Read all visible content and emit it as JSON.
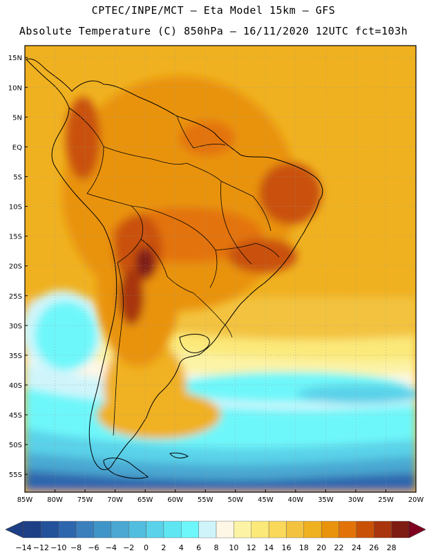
{
  "header": {
    "line1": "CPTEC/INPE/MCT –  Eta Model 15km – GFS",
    "line2": "Absolute Temperature (C) 850hPa – 16/11/2020 12UTC fct=103h"
  },
  "map": {
    "region": "South America",
    "variable": "Absolute Temperature (C) 850hPa",
    "lon_range": [
      -85,
      -20
    ],
    "lat_range": [
      -58,
      17
    ],
    "lat_labels": [
      "15N",
      "10N",
      "5N",
      "EQ",
      "5S",
      "10S",
      "15S",
      "20S",
      "25S",
      "30S",
      "35S",
      "40S",
      "45S",
      "50S",
      "55S"
    ],
    "lon_labels": [
      "85W",
      "80W",
      "75W",
      "70W",
      "65W",
      "60W",
      "55W",
      "50W",
      "45W",
      "40W",
      "35W",
      "30W",
      "25W",
      "20W"
    ]
  },
  "legend": {
    "labels": [
      "-14",
      "-12",
      "-10",
      "-8",
      "-6",
      "-4",
      "-2",
      "0",
      "2",
      "4",
      "6",
      "8",
      "10",
      "12",
      "14",
      "16",
      "18",
      "20",
      "22",
      "24",
      "26",
      "28"
    ],
    "colors": [
      "#1d3f86",
      "#23519a",
      "#2e66ad",
      "#3b7fbd",
      "#3f95c8",
      "#4aa8d2",
      "#51bddf",
      "#5ad2e9",
      "#5fe6f3",
      "#6ef7fa",
      "#cff5fb",
      "#fef7e6",
      "#fcf3a5",
      "#fbe97a",
      "#f9d85a",
      "#f3c340",
      "#f0b120",
      "#e9930c",
      "#e37308",
      "#c95107",
      "#a8350d",
      "#7e1b12"
    ],
    "under_color": "#1d3f86",
    "over_color": "#800020"
  }
}
